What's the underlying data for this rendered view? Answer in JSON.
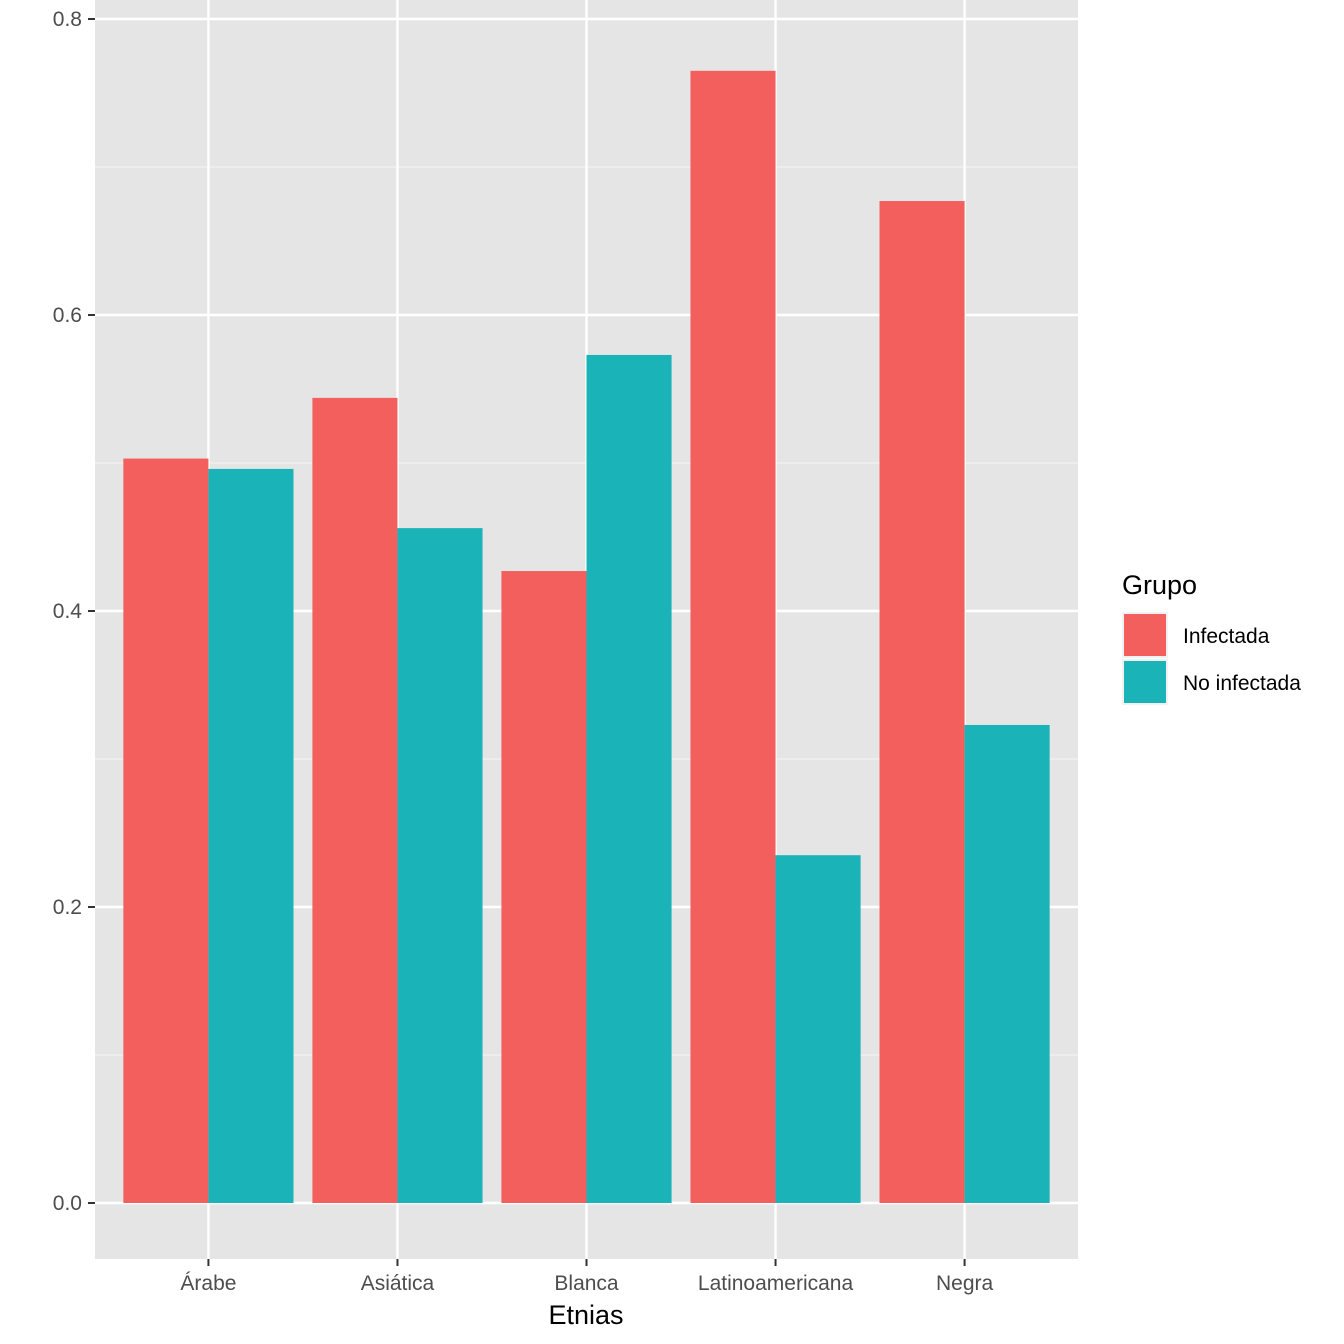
{
  "chart_data": {
    "type": "bar",
    "categories": [
      "Árabe",
      "Asiática",
      "Blanca",
      "Latinoamericana",
      "Negra"
    ],
    "series": [
      {
        "name": "Infectada",
        "values": [
          0.503,
          0.544,
          0.427,
          0.765,
          0.677
        ],
        "color": "#F35F5C"
      },
      {
        "name": "No infectada",
        "values": [
          0.496,
          0.456,
          0.573,
          0.235,
          0.323
        ],
        "color": "#1AB3B8"
      }
    ],
    "xlabel": "Etnias",
    "ylabel": "",
    "ylim": [
      -0.038,
      0.8
    ],
    "yticks": [
      0.0,
      0.2,
      0.4,
      0.6,
      0.8
    ],
    "ytick_labels": [
      "0.0",
      "0.2",
      "0.4",
      "0.6",
      "0.8"
    ],
    "legend_title": "Grupo",
    "legend_position": "right",
    "grid": true,
    "panel_background": "#E5E5E5"
  }
}
